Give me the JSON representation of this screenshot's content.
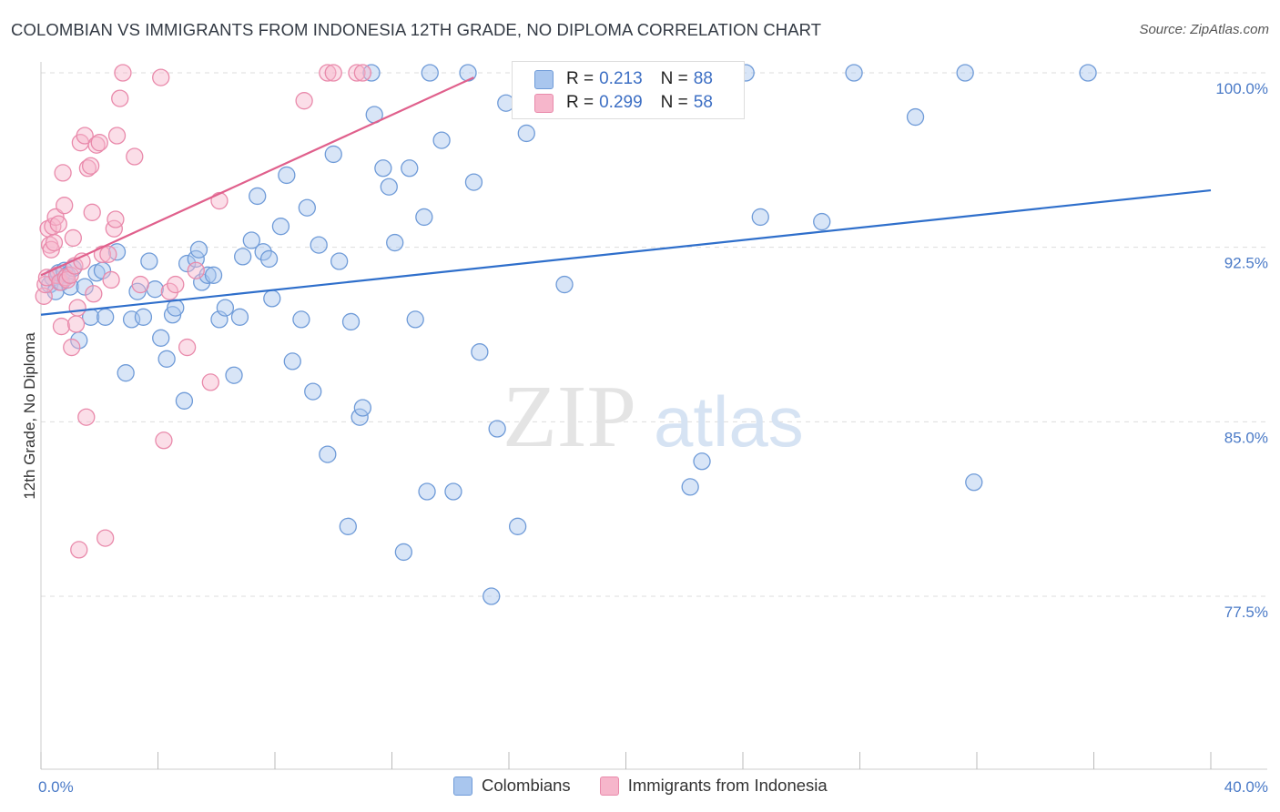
{
  "header": {
    "title": "COLOMBIAN VS IMMIGRANTS FROM INDONESIA 12TH GRADE, NO DIPLOMA CORRELATION CHART",
    "source": "Source: ZipAtlas.com"
  },
  "watermark": {
    "zip": "ZIP",
    "atlas": "atlas"
  },
  "legend": {
    "r_label": "R =",
    "n_label": "N =",
    "rows": [
      {
        "r": "0.213",
        "n": "88"
      },
      {
        "r": "0.299",
        "n": "58"
      }
    ]
  },
  "bottom_legend": [
    "Colombians",
    "Immigrants from Indonesia"
  ],
  "colors": {
    "blue_fill": "#a9c6ee",
    "blue_stroke": "#6f9bd8",
    "blue_line": "#2f6fcb",
    "pink_fill": "#f6b6cb",
    "pink_stroke": "#e98aab",
    "pink_line": "#e0608c",
    "grid": "#dddddd",
    "tick": "#4a7ac7"
  },
  "chart_data": {
    "type": "scatter",
    "title": "COLOMBIAN VS IMMIGRANTS FROM INDONESIA 12TH GRADE, NO DIPLOMA CORRELATION CHART",
    "xlabel": "",
    "ylabel": "12th Grade, No Diploma",
    "xlim": [
      0,
      40
    ],
    "ylim": [
      70.0,
      101.5
    ],
    "x_tick_labels": [
      {
        "value": 0,
        "label": "0.0%"
      },
      {
        "value": 40,
        "label": "40.0%"
      }
    ],
    "x_minor_ticks": [
      0,
      4,
      8,
      12,
      16,
      20,
      24,
      28,
      32,
      36,
      40
    ],
    "y_ticks": [
      {
        "value": 100.0,
        "label": "100.0%"
      },
      {
        "value": 92.5,
        "label": "92.5%"
      },
      {
        "value": 85.0,
        "label": "85.0%"
      },
      {
        "value": 77.5,
        "label": "77.5%"
      }
    ],
    "grid": true,
    "legend_position": "top-center",
    "series": [
      {
        "name": "Colombians",
        "R": 0.213,
        "N": 88,
        "trend": {
          "x": [
            0,
            40
          ],
          "y": [
            89.6,
            94.95
          ]
        },
        "points": [
          [
            0.3,
            90.9
          ],
          [
            0.4,
            91.2
          ],
          [
            0.5,
            90.6
          ],
          [
            0.6,
            91.4
          ],
          [
            0.7,
            91.0
          ],
          [
            0.8,
            91.5
          ],
          [
            0.9,
            91.3
          ],
          [
            1.0,
            90.8
          ],
          [
            1.1,
            91.6
          ],
          [
            1.3,
            88.5
          ],
          [
            1.5,
            90.8
          ],
          [
            1.7,
            89.5
          ],
          [
            1.9,
            91.4
          ],
          [
            2.1,
            91.5
          ],
          [
            2.2,
            89.5
          ],
          [
            2.6,
            92.3
          ],
          [
            2.9,
            87.1
          ],
          [
            3.1,
            89.4
          ],
          [
            3.3,
            90.6
          ],
          [
            3.5,
            89.5
          ],
          [
            3.7,
            91.9
          ],
          [
            3.9,
            90.7
          ],
          [
            4.1,
            88.6
          ],
          [
            4.3,
            87.7
          ],
          [
            4.5,
            89.6
          ],
          [
            4.6,
            89.9
          ],
          [
            4.9,
            85.9
          ],
          [
            5.0,
            91.8
          ],
          [
            5.3,
            92.0
          ],
          [
            5.4,
            92.4
          ],
          [
            5.5,
            91.0
          ],
          [
            5.7,
            91.3
          ],
          [
            5.9,
            91.3
          ],
          [
            6.1,
            89.4
          ],
          [
            6.3,
            89.9
          ],
          [
            6.6,
            87.0
          ],
          [
            6.8,
            89.5
          ],
          [
            6.9,
            92.1
          ],
          [
            7.2,
            92.8
          ],
          [
            7.4,
            94.7
          ],
          [
            7.6,
            92.3
          ],
          [
            7.8,
            92.0
          ],
          [
            7.9,
            90.3
          ],
          [
            8.2,
            93.4
          ],
          [
            8.4,
            95.6
          ],
          [
            8.6,
            87.6
          ],
          [
            8.9,
            89.4
          ],
          [
            9.1,
            94.2
          ],
          [
            9.3,
            86.3
          ],
          [
            9.5,
            92.6
          ],
          [
            9.8,
            83.6
          ],
          [
            10.0,
            96.5
          ],
          [
            10.2,
            91.9
          ],
          [
            10.5,
            80.5
          ],
          [
            10.6,
            89.3
          ],
          [
            10.9,
            85.2
          ],
          [
            11.0,
            85.6
          ],
          [
            11.3,
            100.0
          ],
          [
            11.4,
            98.2
          ],
          [
            11.7,
            95.9
          ],
          [
            11.9,
            95.1
          ],
          [
            12.1,
            92.7
          ],
          [
            12.4,
            79.4
          ],
          [
            12.6,
            95.9
          ],
          [
            12.8,
            89.4
          ],
          [
            13.1,
            93.8
          ],
          [
            13.2,
            82.0
          ],
          [
            13.3,
            100.0
          ],
          [
            13.7,
            97.1
          ],
          [
            14.1,
            82.0
          ],
          [
            14.6,
            100.0
          ],
          [
            14.8,
            95.3
          ],
          [
            15.0,
            88.0
          ],
          [
            15.4,
            77.5
          ],
          [
            15.6,
            84.7
          ],
          [
            15.9,
            98.7
          ],
          [
            16.3,
            80.5
          ],
          [
            16.6,
            97.4
          ],
          [
            17.9,
            90.9
          ],
          [
            19.5,
            100.0
          ],
          [
            22.2,
            82.2
          ],
          [
            22.6,
            83.3
          ],
          [
            24.1,
            100.0
          ],
          [
            24.6,
            93.8
          ],
          [
            26.7,
            93.6
          ],
          [
            27.8,
            100.0
          ],
          [
            29.9,
            98.1
          ],
          [
            31.6,
            100.0
          ],
          [
            31.9,
            82.4
          ],
          [
            35.8,
            100.0
          ]
        ]
      },
      {
        "name": "Immigrants from Indonesia",
        "R": 0.299,
        "N": 58,
        "trend": {
          "x": [
            0,
            14.8
          ],
          "y": [
            91.3,
            99.8
          ]
        },
        "points": [
          [
            0.1,
            90.4
          ],
          [
            0.15,
            90.9
          ],
          [
            0.2,
            91.2
          ],
          [
            0.25,
            93.3
          ],
          [
            0.3,
            92.6
          ],
          [
            0.35,
            92.4
          ],
          [
            0.4,
            93.4
          ],
          [
            0.45,
            92.7
          ],
          [
            0.5,
            93.8
          ],
          [
            0.55,
            91.3
          ],
          [
            0.6,
            93.5
          ],
          [
            0.65,
            91.0
          ],
          [
            0.7,
            89.1
          ],
          [
            0.75,
            95.7
          ],
          [
            0.8,
            94.3
          ],
          [
            0.85,
            91.2
          ],
          [
            0.9,
            91.1
          ],
          [
            1.0,
            91.3
          ],
          [
            1.05,
            88.2
          ],
          [
            1.1,
            92.9
          ],
          [
            1.15,
            91.7
          ],
          [
            1.2,
            89.2
          ],
          [
            1.25,
            89.9
          ],
          [
            1.3,
            79.5
          ],
          [
            1.35,
            97.0
          ],
          [
            1.4,
            91.9
          ],
          [
            1.5,
            97.3
          ],
          [
            1.55,
            85.2
          ],
          [
            1.6,
            95.9
          ],
          [
            1.7,
            96.0
          ],
          [
            1.75,
            94.0
          ],
          [
            1.8,
            90.5
          ],
          [
            1.9,
            96.9
          ],
          [
            2.0,
            97.0
          ],
          [
            2.1,
            92.2
          ],
          [
            2.2,
            80.0
          ],
          [
            2.3,
            92.2
          ],
          [
            2.4,
            91.1
          ],
          [
            2.5,
            93.3
          ],
          [
            2.55,
            93.7
          ],
          [
            2.6,
            97.3
          ],
          [
            2.7,
            98.9
          ],
          [
            2.8,
            100.0
          ],
          [
            3.2,
            96.4
          ],
          [
            3.4,
            90.9
          ],
          [
            4.1,
            99.8
          ],
          [
            4.2,
            84.2
          ],
          [
            4.4,
            90.6
          ],
          [
            4.6,
            90.9
          ],
          [
            5.0,
            88.2
          ],
          [
            5.3,
            91.5
          ],
          [
            5.8,
            86.7
          ],
          [
            6.1,
            94.5
          ],
          [
            9.0,
            98.8
          ],
          [
            9.8,
            100.0
          ],
          [
            10.0,
            100.0
          ],
          [
            10.8,
            100.0
          ],
          [
            11.0,
            100.0
          ]
        ]
      }
    ]
  }
}
